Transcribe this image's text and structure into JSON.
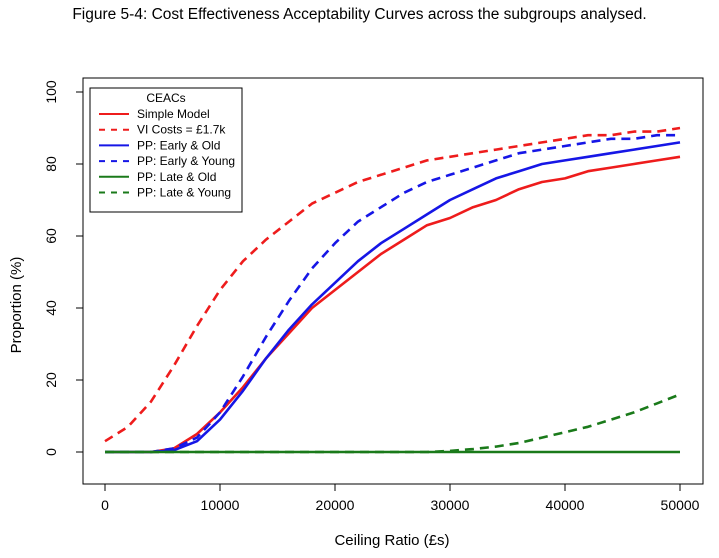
{
  "caption": "Figure 5-4: Cost Effectiveness Acceptability Curves across the subgroups analysed.",
  "chart_data": {
    "type": "line",
    "title": "",
    "xlabel": "Ceiling Ratio (£s)",
    "ylabel": "Proportion (%)",
    "xlim": [
      0,
      50000
    ],
    "ylim": [
      0,
      100
    ],
    "xticks": [
      0,
      10000,
      20000,
      30000,
      40000,
      50000
    ],
    "yticks": [
      0,
      20,
      40,
      60,
      80,
      100
    ],
    "xtick_labels": [
      "0",
      "10000",
      "20000",
      "30000",
      "40000",
      "50000"
    ],
    "ytick_labels": [
      "0",
      "20",
      "40",
      "60",
      "80",
      "100"
    ],
    "grid": false,
    "legend": {
      "title": "CEACs",
      "placement": "top-left"
    },
    "x": [
      0,
      2000,
      4000,
      6000,
      8000,
      10000,
      12000,
      14000,
      16000,
      18000,
      20000,
      22000,
      24000,
      26000,
      28000,
      30000,
      32000,
      34000,
      36000,
      38000,
      40000,
      42000,
      44000,
      46000,
      48000,
      50000
    ],
    "series": [
      {
        "name": "Simple Model",
        "color": "#ee1c1c",
        "dash": "solid",
        "values": [
          0,
          0,
          0,
          1,
          5,
          11,
          18,
          26,
          33,
          40,
          45,
          50,
          55,
          59,
          63,
          65,
          68,
          70,
          73,
          75,
          76,
          78,
          79,
          80,
          81,
          82
        ]
      },
      {
        "name": "VI Costs = £1.7k",
        "color": "#ee1c1c",
        "dash": "dashed",
        "values": [
          3,
          7,
          14,
          24,
          35,
          45,
          53,
          59,
          64,
          69,
          72,
          75,
          77,
          79,
          81,
          82,
          83,
          84,
          85,
          86,
          87,
          88,
          88,
          89,
          89,
          90
        ]
      },
      {
        "name": "PP: Early & Old",
        "color": "#1616e6",
        "dash": "solid",
        "values": [
          0,
          0,
          0,
          0.5,
          3,
          9,
          17,
          26,
          34,
          41,
          47,
          53,
          58,
          62,
          66,
          70,
          73,
          76,
          78,
          80,
          81,
          82,
          83,
          84,
          85,
          86
        ]
      },
      {
        "name": "PP: Early & Young",
        "color": "#1616e6",
        "dash": "dashed",
        "values": [
          0,
          0,
          0,
          1,
          4,
          11,
          21,
          32,
          42,
          51,
          58,
          64,
          68,
          72,
          75,
          77,
          79,
          81,
          83,
          84,
          85,
          86,
          87,
          87,
          88,
          88
        ]
      },
      {
        "name": "PP: Late & Old",
        "color": "#1a7a1a",
        "dash": "solid",
        "values": [
          0,
          0,
          0,
          0,
          0,
          0,
          0,
          0,
          0,
          0,
          0,
          0,
          0,
          0,
          0,
          0,
          0,
          0,
          0,
          0,
          0,
          0,
          0,
          0,
          0,
          0
        ]
      },
      {
        "name": "PP: Late & Young",
        "color": "#1a7a1a",
        "dash": "dashed",
        "values": [
          0,
          0,
          0,
          0,
          0,
          0,
          0,
          0,
          0,
          0,
          0,
          0,
          0,
          0,
          0,
          0.3,
          0.8,
          1.5,
          2.5,
          4,
          5.5,
          7,
          9,
          11,
          13.5,
          16
        ]
      }
    ]
  }
}
